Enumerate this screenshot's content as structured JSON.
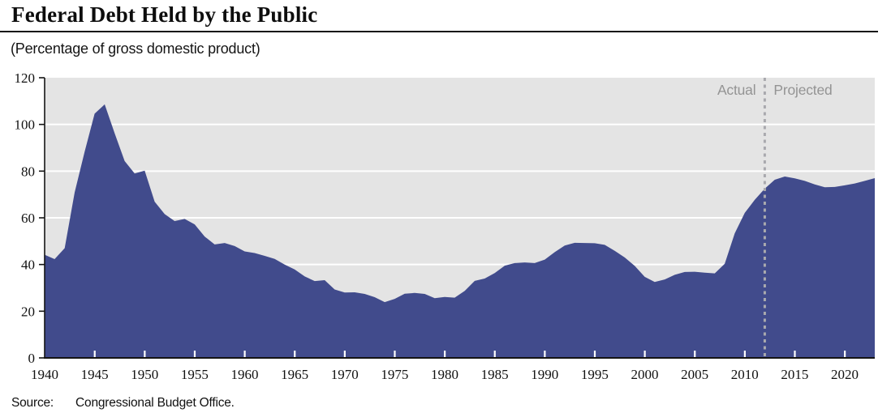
{
  "header": {
    "title": "Federal Debt Held by the Public",
    "subtitle": "(Percentage of gross domestic product)"
  },
  "footer": {
    "source_label": "Source:",
    "source_text": "Congressional Budget Office."
  },
  "colors": {
    "area_fill": "#414b8c",
    "plot_bg": "#e4e4e4",
    "gridline": "#ffffff",
    "axis": "#141414",
    "tick_label": "#111111",
    "divider_line": "#a9a9ae",
    "annotation_text": "#949494",
    "x_tick_mark": "#ffffff"
  },
  "chart_data": {
    "type": "area",
    "title": "Federal Debt Held by the Public",
    "ylabel": "Percentage of gross domestic product",
    "xlabel": "",
    "ylim": [
      0,
      120
    ],
    "ytick_step": 20,
    "xlim": [
      1940,
      2023
    ],
    "xticks": [
      1940,
      1945,
      1950,
      1955,
      1960,
      1965,
      1970,
      1975,
      1980,
      1985,
      1990,
      1995,
      2000,
      2005,
      2010,
      2015,
      2020
    ],
    "grid": "horizontal-white",
    "legend_position": "none",
    "divider": {
      "year": 2012,
      "left_label": "Actual",
      "right_label": "Projected"
    },
    "x": [
      1940,
      1941,
      1942,
      1943,
      1944,
      1945,
      1946,
      1947,
      1948,
      1949,
      1950,
      1951,
      1952,
      1953,
      1954,
      1955,
      1956,
      1957,
      1958,
      1959,
      1960,
      1961,
      1962,
      1963,
      1964,
      1965,
      1966,
      1967,
      1968,
      1969,
      1970,
      1971,
      1972,
      1973,
      1974,
      1975,
      1976,
      1977,
      1978,
      1979,
      1980,
      1981,
      1982,
      1983,
      1984,
      1985,
      1986,
      1987,
      1988,
      1989,
      1990,
      1991,
      1992,
      1993,
      1994,
      1995,
      1996,
      1997,
      1998,
      1999,
      2000,
      2001,
      2002,
      2003,
      2004,
      2005,
      2006,
      2007,
      2008,
      2009,
      2010,
      2011,
      2012,
      2013,
      2014,
      2015,
      2016,
      2017,
      2018,
      2019,
      2020,
      2021,
      2022,
      2023
    ],
    "values": [
      44.2,
      42.3,
      47.0,
      70.9,
      88.3,
      104.6,
      108.6,
      96.2,
      84.3,
      79.0,
      80.2,
      66.9,
      61.6,
      58.6,
      59.5,
      57.2,
      52.0,
      48.6,
      49.2,
      47.9,
      45.6,
      44.9,
      43.7,
      42.4,
      40.0,
      37.9,
      34.9,
      32.9,
      33.3,
      29.3,
      28.0,
      28.1,
      27.4,
      26.0,
      23.9,
      25.3,
      27.5,
      27.8,
      27.4,
      25.6,
      26.1,
      25.8,
      28.7,
      33.0,
      34.0,
      36.3,
      39.5,
      40.6,
      40.9,
      40.6,
      42.1,
      45.3,
      48.1,
      49.3,
      49.2,
      49.1,
      48.4,
      45.9,
      43.0,
      39.4,
      34.7,
      32.5,
      33.6,
      35.6,
      36.8,
      36.9,
      36.5,
      36.2,
      40.3,
      53.3,
      62.1,
      67.7,
      72.5,
      76.3,
      77.7,
      76.9,
      75.8,
      74.3,
      73.1,
      73.2,
      73.9,
      74.7,
      75.8,
      77.0
    ]
  }
}
